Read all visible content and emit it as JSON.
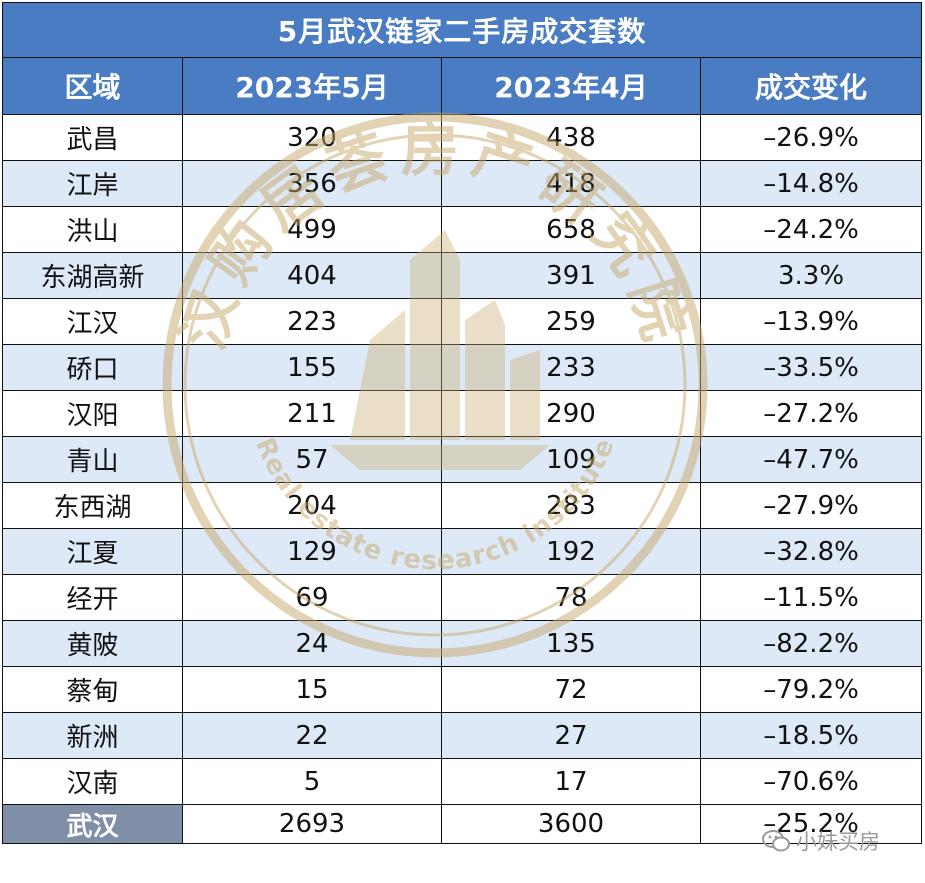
{
  "title": "5月武汉链家二手房成交套数",
  "headers": [
    "区域",
    "2023年5月",
    "2023年4月",
    "成交变化"
  ],
  "rows": [
    {
      "district": "武昌",
      "may": "320",
      "april": "438",
      "change": "–26.9%"
    },
    {
      "district": "江岸",
      "may": "356",
      "april": "418",
      "change": "–14.8%"
    },
    {
      "district": "洪山",
      "may": "499",
      "april": "658",
      "change": "–24.2%"
    },
    {
      "district": "东湖高新",
      "may": "404",
      "april": "391",
      "change": "3.3%"
    },
    {
      "district": "江汉",
      "may": "223",
      "april": "259",
      "change": "–13.9%"
    },
    {
      "district": "硚口",
      "may": "155",
      "april": "233",
      "change": "–33.5%"
    },
    {
      "district": "汉阳",
      "may": "211",
      "april": "290",
      "change": "–27.2%"
    },
    {
      "district": "青山",
      "may": "57",
      "april": "109",
      "change": "–47.7%"
    },
    {
      "district": "东西湖",
      "may": "204",
      "april": "283",
      "change": "–27.9%"
    },
    {
      "district": "江夏",
      "may": "129",
      "april": "192",
      "change": "–32.8%"
    },
    {
      "district": "经开",
      "may": "69",
      "april": "78",
      "change": "–11.5%"
    },
    {
      "district": "黄陂",
      "may": "24",
      "april": "135",
      "change": "–82.2%"
    },
    {
      "district": "蔡甸",
      "may": "15",
      "april": "72",
      "change": "–79.2%"
    },
    {
      "district": "新洲",
      "may": "22",
      "april": "27",
      "change": "–18.5%"
    },
    {
      "district": "汉南",
      "may": "5",
      "april": "17",
      "change": "–70.6%"
    }
  ],
  "total": {
    "district": "武汉",
    "may": "2693",
    "april": "3600",
    "change": "–25.2%"
  },
  "watermark": {
    "text_cn": "汉购居荟房产研究院",
    "text_en": "Real estate research institute"
  },
  "source_badge": {
    "icon": "wechat-icon",
    "label": "小妹买房"
  },
  "colors": {
    "header_bg": "#4a7cc3",
    "stripe_bg": "#dde9f6",
    "total_label_bg": "#7f8fa8",
    "watermark": "#c9a96e"
  }
}
